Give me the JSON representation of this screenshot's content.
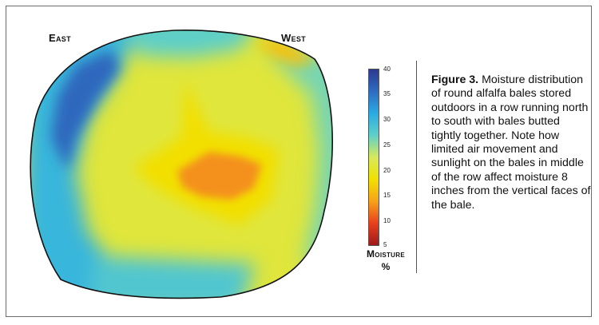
{
  "chart_data": {
    "type": "heatmap",
    "title": "",
    "labels": {
      "east": "East",
      "west": "West"
    },
    "colorbar": {
      "label_line1": "Moisture",
      "label_line2": "%",
      "range": [
        5,
        40
      ],
      "ticks": [
        "40",
        "35",
        "30",
        "25",
        "20",
        "15",
        "10",
        "5"
      ],
      "colors": [
        "#2b3990",
        "#2e6bc1",
        "#29abe2",
        "#5fd0c8",
        "#d7e95a",
        "#f2e100",
        "#f7a21a",
        "#e8401c",
        "#9e1a1a"
      ]
    },
    "regions": [
      {
        "name": "background",
        "moisture": 21
      },
      {
        "name": "east-edge-band",
        "moisture": 30
      },
      {
        "name": "east-core",
        "moisture": 36
      },
      {
        "name": "top-edge",
        "moisture": 27
      },
      {
        "name": "west-edge",
        "moisture": 26
      },
      {
        "name": "west-top-tip",
        "moisture": 16
      },
      {
        "name": "bottom-edge",
        "moisture": 28
      },
      {
        "name": "center-plume",
        "moisture": 18
      },
      {
        "name": "center-hot",
        "moisture": 13
      }
    ]
  },
  "caption": {
    "label": "Figure 3.",
    "text": " Moisture distribution of round alfalfa bales stored outdoors in a row running north to south with bales butted tightly together. Note how limited air movement and sunlight on the bales in middle of the row affect moisture 8 inches from the vertical faces of the bale."
  }
}
